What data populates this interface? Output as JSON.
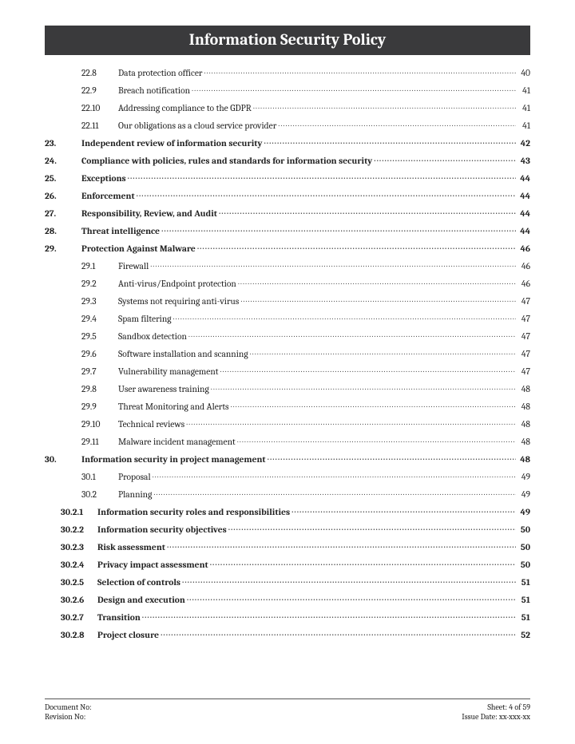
{
  "title": "Information Security Policy",
  "colors": {
    "title_bg": "#3a3a3c",
    "title_fg": "#ffffff",
    "text": "#222222"
  },
  "toc": [
    {
      "num": "22.8",
      "label": "Data protection officer",
      "page": "40",
      "level": 1,
      "bold": false
    },
    {
      "num": "22.9",
      "label": "Breach notification",
      "page": "41",
      "level": 1,
      "bold": false
    },
    {
      "num": "22.10",
      "label": "Addressing compliance to the GDPR",
      "page": "41",
      "level": 1,
      "bold": false
    },
    {
      "num": "22.11",
      "label": "Our obligations as a cloud service provider",
      "page": "41",
      "level": 1,
      "bold": false
    },
    {
      "num": "23.",
      "label": "Independent review of information security",
      "page": "42",
      "level": 0,
      "bold": true
    },
    {
      "num": "24.",
      "label": "Compliance with policies, rules and standards for information security",
      "page": "43",
      "level": 0,
      "bold": true
    },
    {
      "num": "25.",
      "label": "Exceptions",
      "page": "44",
      "level": 0,
      "bold": true
    },
    {
      "num": "26.",
      "label": "Enforcement",
      "page": "44",
      "level": 0,
      "bold": true
    },
    {
      "num": "27.",
      "label": "Responsibility, Review, and Audit",
      "page": "44",
      "level": 0,
      "bold": true
    },
    {
      "num": "28.",
      "label": "Threat intelligence",
      "page": "44",
      "level": 0,
      "bold": true
    },
    {
      "num": "29.",
      "label": "Protection Against Malware",
      "page": "46",
      "level": 0,
      "bold": true
    },
    {
      "num": "29.1",
      "label": "Firewall",
      "page": "46",
      "level": 1,
      "bold": false
    },
    {
      "num": "29.2",
      "label": "Anti-virus/Endpoint protection",
      "page": "46",
      "level": 1,
      "bold": false
    },
    {
      "num": "29.3",
      "label": "Systems not requiring anti-virus",
      "page": "47",
      "level": 1,
      "bold": false
    },
    {
      "num": "29.4",
      "label": "Spam filtering",
      "page": "47",
      "level": 1,
      "bold": false
    },
    {
      "num": "29.5",
      "label": "Sandbox detection",
      "page": "47",
      "level": 1,
      "bold": false
    },
    {
      "num": "29.6",
      "label": "Software installation and scanning",
      "page": "47",
      "level": 1,
      "bold": false
    },
    {
      "num": "29.7",
      "label": "Vulnerability management",
      "page": "47",
      "level": 1,
      "bold": false
    },
    {
      "num": "29.8",
      "label": "User awareness training",
      "page": "48",
      "level": 1,
      "bold": false
    },
    {
      "num": "29.9",
      "label": "Threat Monitoring and Alerts",
      "page": "48",
      "level": 1,
      "bold": false
    },
    {
      "num": "29.10",
      "label": "Technical reviews",
      "page": "48",
      "level": 1,
      "bold": false
    },
    {
      "num": "29.11",
      "label": "Malware incident management",
      "page": "48",
      "level": 1,
      "bold": false
    },
    {
      "num": "30.",
      "label": "Information security in project management",
      "page": "48",
      "level": 0,
      "bold": true
    },
    {
      "num": "30.1",
      "label": "Proposal",
      "page": "49",
      "level": 1,
      "bold": false
    },
    {
      "num": "30.2",
      "label": "Planning",
      "page": "49",
      "level": 1,
      "bold": false
    },
    {
      "num": "30.2.1",
      "label": "Information security roles and responsibilities",
      "page": "49",
      "level": 2,
      "bold": true
    },
    {
      "num": "30.2.2",
      "label": "Information security objectives",
      "page": "50",
      "level": 2,
      "bold": true
    },
    {
      "num": "30.2.3",
      "label": "Risk assessment",
      "page": "50",
      "level": 2,
      "bold": true
    },
    {
      "num": "30.2.4",
      "label": "Privacy impact assessment",
      "page": "50",
      "level": 2,
      "bold": true
    },
    {
      "num": "30.2.5",
      "label": "Selection of controls",
      "page": "51",
      "level": 2,
      "bold": true
    },
    {
      "num": "30.2.6",
      "label": "Design and execution",
      "page": "51",
      "level": 2,
      "bold": true
    },
    {
      "num": "30.2.7",
      "label": "Transition",
      "page": "51",
      "level": 2,
      "bold": true
    },
    {
      "num": "30.2.8",
      "label": "Project closure",
      "page": "52",
      "level": 2,
      "bold": true
    }
  ],
  "footer": {
    "doc_no_label": "Document No:",
    "rev_no_label": "Revision No:",
    "sheet_label": "Sheet: 4 of 59",
    "issue_label": "Issue Date: xx-xxx-xx"
  }
}
